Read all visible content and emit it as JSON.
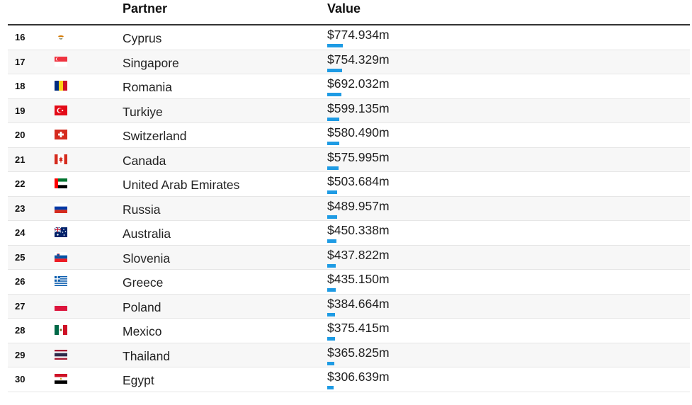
{
  "header": {
    "partner_label": "Partner",
    "value_label": "Value"
  },
  "bar_color": "#1e9be4",
  "rows": [
    {
      "rank": "16",
      "flag": "cyprus-flag-icon",
      "partner": "Cyprus",
      "value": "$774.934m",
      "amount": 774.934
    },
    {
      "rank": "17",
      "flag": "singapore-flag-icon",
      "partner": "Singapore",
      "value": "$754.329m",
      "amount": 754.329
    },
    {
      "rank": "18",
      "flag": "romania-flag-icon",
      "partner": "Romania",
      "value": "$692.032m",
      "amount": 692.032
    },
    {
      "rank": "19",
      "flag": "turkiye-flag-icon",
      "partner": "Turkiye",
      "value": "$599.135m",
      "amount": 599.135
    },
    {
      "rank": "20",
      "flag": "switzerland-flag-icon",
      "partner": "Switzerland",
      "value": "$580.490m",
      "amount": 580.49
    },
    {
      "rank": "21",
      "flag": "canada-flag-icon",
      "partner": "Canada",
      "value": "$575.995m",
      "amount": 575.995
    },
    {
      "rank": "22",
      "flag": "uae-flag-icon",
      "partner": "United Arab Emirates",
      "value": "$503.684m",
      "amount": 503.684
    },
    {
      "rank": "23",
      "flag": "russia-flag-icon",
      "partner": "Russia",
      "value": "$489.957m",
      "amount": 489.957
    },
    {
      "rank": "24",
      "flag": "australia-flag-icon",
      "partner": "Australia",
      "value": "$450.338m",
      "amount": 450.338
    },
    {
      "rank": "25",
      "flag": "slovenia-flag-icon",
      "partner": "Slovenia",
      "value": "$437.822m",
      "amount": 437.822
    },
    {
      "rank": "26",
      "flag": "greece-flag-icon",
      "partner": "Greece",
      "value": "$435.150m",
      "amount": 435.15
    },
    {
      "rank": "27",
      "flag": "poland-flag-icon",
      "partner": "Poland",
      "value": "$384.664m",
      "amount": 384.664
    },
    {
      "rank": "28",
      "flag": "mexico-flag-icon",
      "partner": "Mexico",
      "value": "$375.415m",
      "amount": 375.415
    },
    {
      "rank": "29",
      "flag": "thailand-flag-icon",
      "partner": "Thailand",
      "value": "$365.825m",
      "amount": 365.825
    },
    {
      "rank": "30",
      "flag": "egypt-flag-icon",
      "partner": "Egypt",
      "value": "$306.639m",
      "amount": 306.639
    }
  ]
}
